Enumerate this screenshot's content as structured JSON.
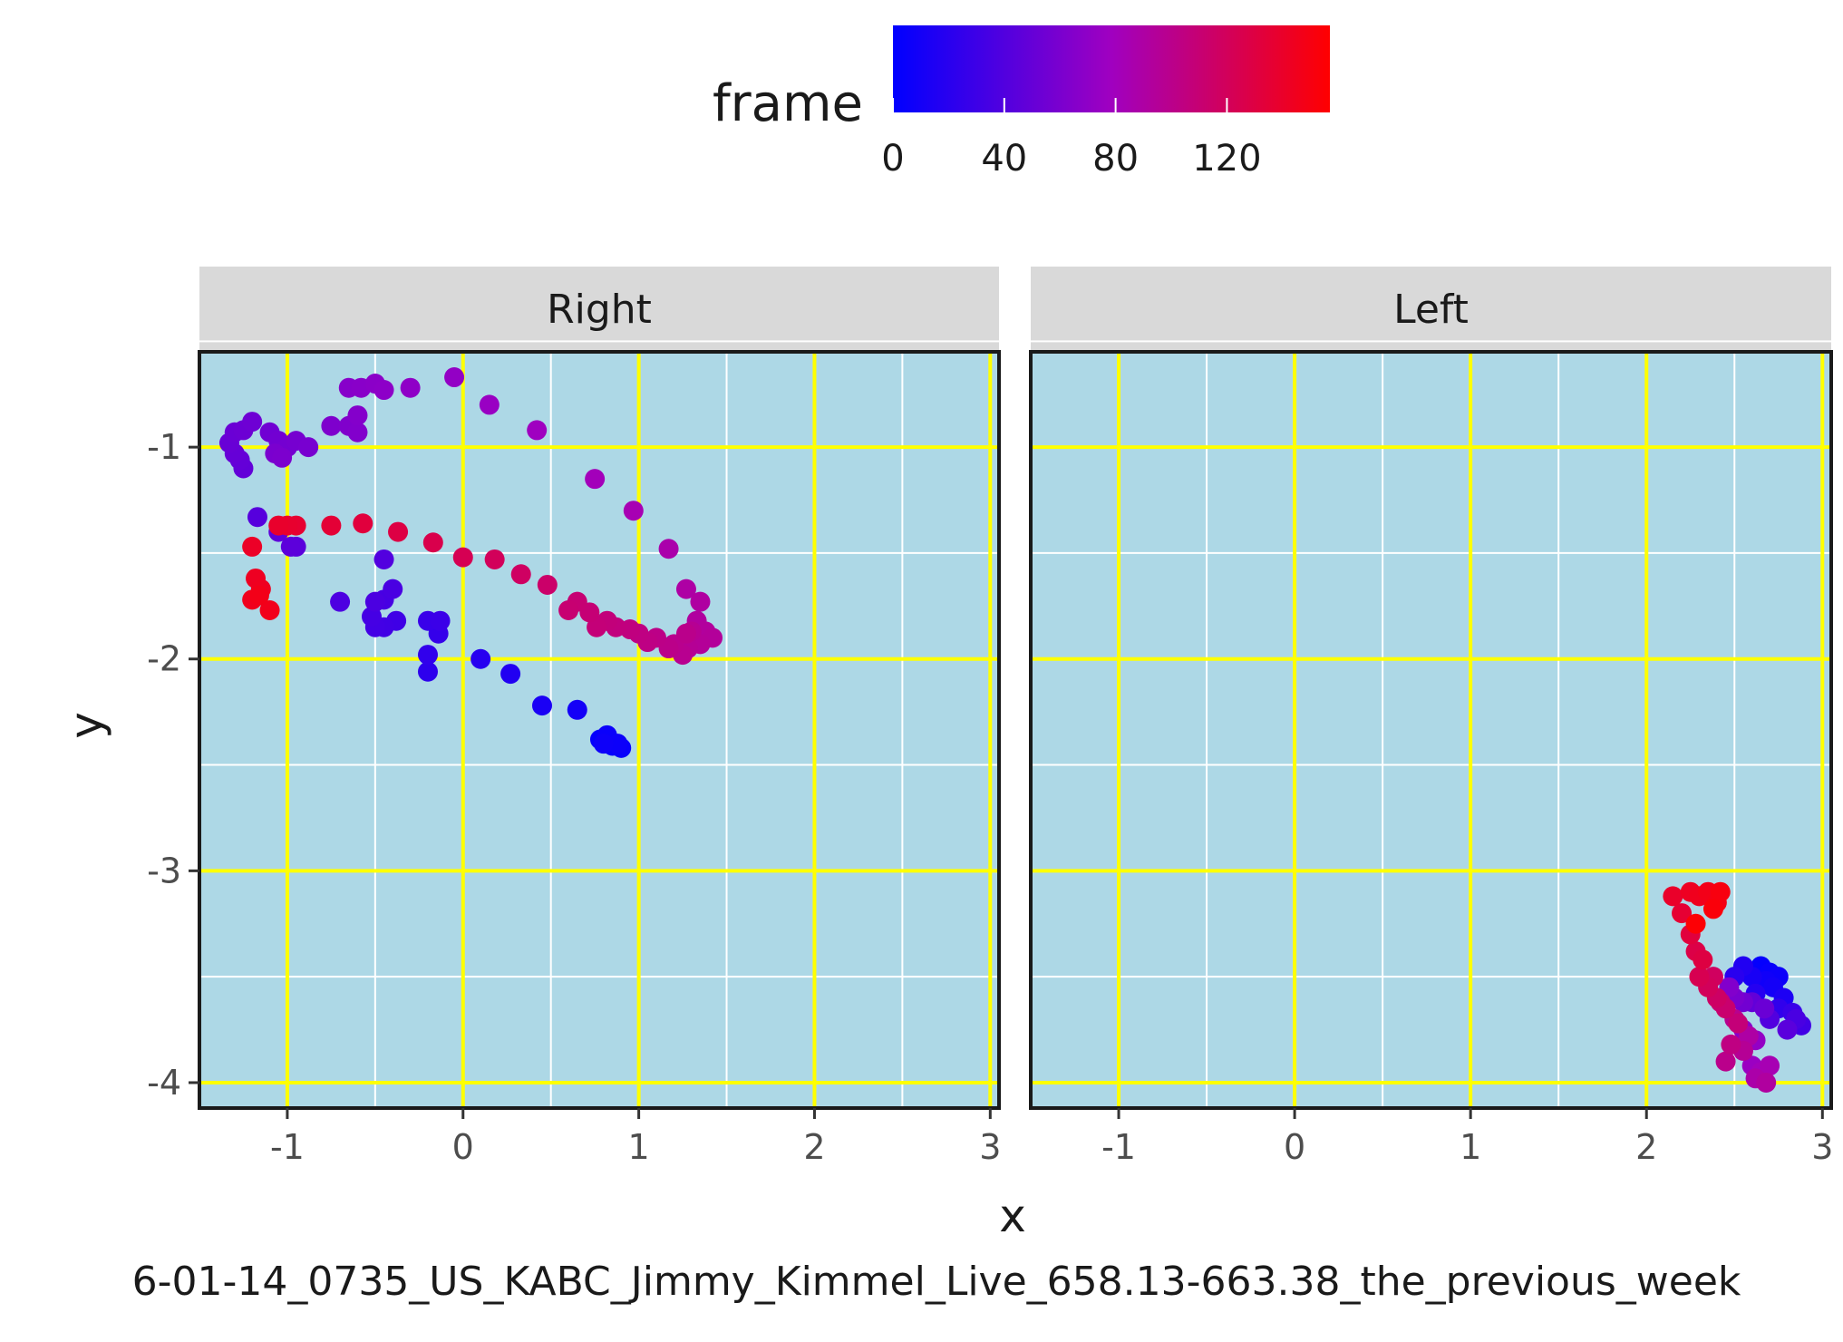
{
  "chart_data": {
    "type": "scatter",
    "xlabel": "x",
    "ylabel": "y",
    "caption": "6-01-14_0735_US_KABC_Jimmy_Kimmel_Live_658.13-663.38_the_previous_week",
    "xlim": [
      -1.5,
      3.05
    ],
    "ylim": [
      -4.12,
      -0.55
    ],
    "x_ticks": [
      -1,
      0,
      1,
      2,
      3
    ],
    "y_ticks": [
      -1,
      -2,
      -3,
      -4
    ],
    "grid": true,
    "colors": {
      "panel_background": "#add8e6",
      "major_grid": "#ffff00",
      "minor_grid": "#ffffff",
      "strip_background": "#d9d9d9",
      "low": "#0000ff",
      "mid": "#a000c0",
      "high": "#ff0000"
    },
    "legend": {
      "title": "frame",
      "placement": "top",
      "range": [
        0,
        157
      ],
      "ticks": [
        0,
        40,
        80,
        120
      ],
      "tick_labels": [
        "0",
        "40",
        "80",
        "120"
      ]
    },
    "facets": [
      {
        "label": "Right",
        "points": [
          [
            0.78,
            -2.38,
            2
          ],
          [
            0.85,
            -2.41,
            3
          ],
          [
            0.9,
            -2.42,
            4
          ],
          [
            0.82,
            -2.36,
            5
          ],
          [
            0.88,
            -2.4,
            6
          ],
          [
            0.8,
            -2.4,
            7
          ],
          [
            0.65,
            -2.24,
            10
          ],
          [
            0.45,
            -2.22,
            13
          ],
          [
            0.27,
            -2.07,
            16
          ],
          [
            0.1,
            -2.0,
            19
          ],
          [
            -0.2,
            -2.06,
            22
          ],
          [
            -0.2,
            -1.98,
            24
          ],
          [
            -0.14,
            -1.88,
            26
          ],
          [
            -0.2,
            -1.82,
            28
          ],
          [
            -0.13,
            -1.82,
            29
          ],
          [
            -0.38,
            -1.82,
            31
          ],
          [
            -0.45,
            -1.85,
            32
          ],
          [
            -0.5,
            -1.85,
            33
          ],
          [
            -0.52,
            -1.8,
            34
          ],
          [
            -0.45,
            -1.72,
            35
          ],
          [
            -0.4,
            -1.67,
            36
          ],
          [
            -0.5,
            -1.73,
            37
          ],
          [
            -0.7,
            -1.73,
            38
          ],
          [
            -0.45,
            -1.53,
            40
          ],
          [
            -1.17,
            -1.33,
            42
          ],
          [
            -0.95,
            -1.47,
            44
          ],
          [
            -0.98,
            -1.47,
            45
          ],
          [
            -1.05,
            -1.4,
            46
          ],
          [
            -1.25,
            -1.1,
            48
          ],
          [
            -1.27,
            -1.06,
            49
          ],
          [
            -1.3,
            -1.03,
            50
          ],
          [
            -1.33,
            -0.98,
            51
          ],
          [
            -1.3,
            -0.93,
            52
          ],
          [
            -1.25,
            -0.92,
            53
          ],
          [
            -1.2,
            -0.88,
            54
          ],
          [
            -1.1,
            -0.93,
            55
          ],
          [
            -1.05,
            -0.97,
            56
          ],
          [
            -1.0,
            -1.0,
            57
          ],
          [
            -0.95,
            -0.97,
            58
          ],
          [
            -0.88,
            -1.0,
            59
          ],
          [
            -1.07,
            -1.03,
            60
          ],
          [
            -1.03,
            -1.05,
            61
          ],
          [
            -0.75,
            -0.9,
            62
          ],
          [
            -0.65,
            -0.9,
            63
          ],
          [
            -0.6,
            -0.93,
            64
          ],
          [
            -0.6,
            -0.85,
            65
          ],
          [
            -0.65,
            -0.72,
            66
          ],
          [
            -0.58,
            -0.72,
            67
          ],
          [
            -0.5,
            -0.7,
            68
          ],
          [
            -0.45,
            -0.73,
            69
          ],
          [
            -0.3,
            -0.72,
            70
          ],
          [
            -0.05,
            -0.67,
            72
          ],
          [
            0.15,
            -0.8,
            75
          ],
          [
            0.42,
            -0.92,
            78
          ],
          [
            0.75,
            -1.15,
            81
          ],
          [
            0.97,
            -1.3,
            84
          ],
          [
            1.17,
            -1.48,
            87
          ],
          [
            1.27,
            -1.67,
            90
          ],
          [
            1.35,
            -1.73,
            91
          ],
          [
            1.33,
            -1.82,
            92
          ],
          [
            1.38,
            -1.87,
            93
          ],
          [
            1.42,
            -1.9,
            94
          ],
          [
            1.35,
            -1.93,
            95
          ],
          [
            1.28,
            -1.95,
            96
          ],
          [
            1.3,
            -1.87,
            97
          ],
          [
            1.25,
            -1.98,
            98
          ],
          [
            1.2,
            -1.93,
            99
          ],
          [
            1.27,
            -1.88,
            100
          ],
          [
            1.17,
            -1.95,
            101
          ],
          [
            1.1,
            -1.9,
            102
          ],
          [
            1.05,
            -1.92,
            103
          ],
          [
            1.0,
            -1.88,
            104
          ],
          [
            0.95,
            -1.86,
            105
          ],
          [
            0.87,
            -1.85,
            106
          ],
          [
            0.82,
            -1.82,
            107
          ],
          [
            0.76,
            -1.85,
            108
          ],
          [
            0.72,
            -1.78,
            109
          ],
          [
            0.65,
            -1.73,
            110
          ],
          [
            0.6,
            -1.77,
            111
          ],
          [
            0.48,
            -1.65,
            114
          ],
          [
            0.33,
            -1.6,
            117
          ],
          [
            0.18,
            -1.53,
            120
          ],
          [
            0.0,
            -1.52,
            123
          ],
          [
            -0.17,
            -1.45,
            126
          ],
          [
            -0.37,
            -1.4,
            129
          ],
          [
            -0.57,
            -1.36,
            132
          ],
          [
            -0.75,
            -1.37,
            135
          ],
          [
            -0.95,
            -1.37,
            137
          ],
          [
            -1.0,
            -1.37,
            138
          ],
          [
            -1.05,
            -1.37,
            139
          ],
          [
            -1.2,
            -1.47,
            141
          ],
          [
            -1.18,
            -1.62,
            143
          ],
          [
            -1.15,
            -1.67,
            144
          ],
          [
            -1.2,
            -1.72,
            145
          ],
          [
            -1.1,
            -1.77,
            146
          ],
          [
            -1.16,
            -1.7,
            147
          ]
        ]
      },
      {
        "label": "Left",
        "points": [
          [
            2.65,
            -3.45,
            2
          ],
          [
            2.7,
            -3.48,
            4
          ],
          [
            2.75,
            -3.5,
            6
          ],
          [
            2.68,
            -3.52,
            8
          ],
          [
            2.72,
            -3.55,
            10
          ],
          [
            2.6,
            -3.5,
            12
          ],
          [
            2.78,
            -3.6,
            14
          ],
          [
            2.55,
            -3.45,
            16
          ],
          [
            2.62,
            -3.58,
            18
          ],
          [
            2.5,
            -3.5,
            20
          ],
          [
            2.75,
            -3.65,
            24
          ],
          [
            2.83,
            -3.67,
            28
          ],
          [
            2.88,
            -3.73,
            32
          ],
          [
            2.85,
            -3.7,
            36
          ],
          [
            2.7,
            -3.7,
            40
          ],
          [
            2.8,
            -3.75,
            44
          ],
          [
            2.6,
            -3.62,
            48
          ],
          [
            2.67,
            -3.65,
            52
          ],
          [
            2.55,
            -3.62,
            56
          ],
          [
            2.5,
            -3.6,
            60
          ],
          [
            2.47,
            -3.55,
            64
          ],
          [
            2.55,
            -3.75,
            68
          ],
          [
            2.62,
            -3.8,
            72
          ],
          [
            2.6,
            -3.92,
            76
          ],
          [
            2.65,
            -3.95,
            80
          ],
          [
            2.7,
            -3.92,
            84
          ],
          [
            2.62,
            -3.98,
            88
          ],
          [
            2.68,
            -4.0,
            92
          ],
          [
            2.55,
            -3.85,
            96
          ],
          [
            2.45,
            -3.9,
            100
          ],
          [
            2.48,
            -3.82,
            104
          ],
          [
            2.52,
            -3.72,
            108
          ],
          [
            2.45,
            -3.65,
            112
          ],
          [
            2.4,
            -3.6,
            116
          ],
          [
            2.35,
            -3.55,
            120
          ],
          [
            2.3,
            -3.5,
            124
          ],
          [
            2.28,
            -3.38,
            128
          ],
          [
            2.25,
            -3.3,
            132
          ],
          [
            2.2,
            -3.2,
            136
          ],
          [
            2.15,
            -3.12,
            140
          ],
          [
            2.25,
            -3.1,
            143
          ],
          [
            2.3,
            -3.12,
            145
          ],
          [
            2.35,
            -3.1,
            147
          ],
          [
            2.4,
            -3.15,
            149
          ],
          [
            2.42,
            -3.1,
            151
          ],
          [
            2.38,
            -3.18,
            153
          ],
          [
            2.28,
            -3.25,
            155
          ],
          [
            2.32,
            -3.42,
            130
          ],
          [
            2.38,
            -3.5,
            118
          ],
          [
            2.42,
            -3.62,
            110
          ],
          [
            2.5,
            -3.7,
            98
          ],
          [
            2.58,
            -3.78,
            90
          ]
        ]
      }
    ]
  }
}
